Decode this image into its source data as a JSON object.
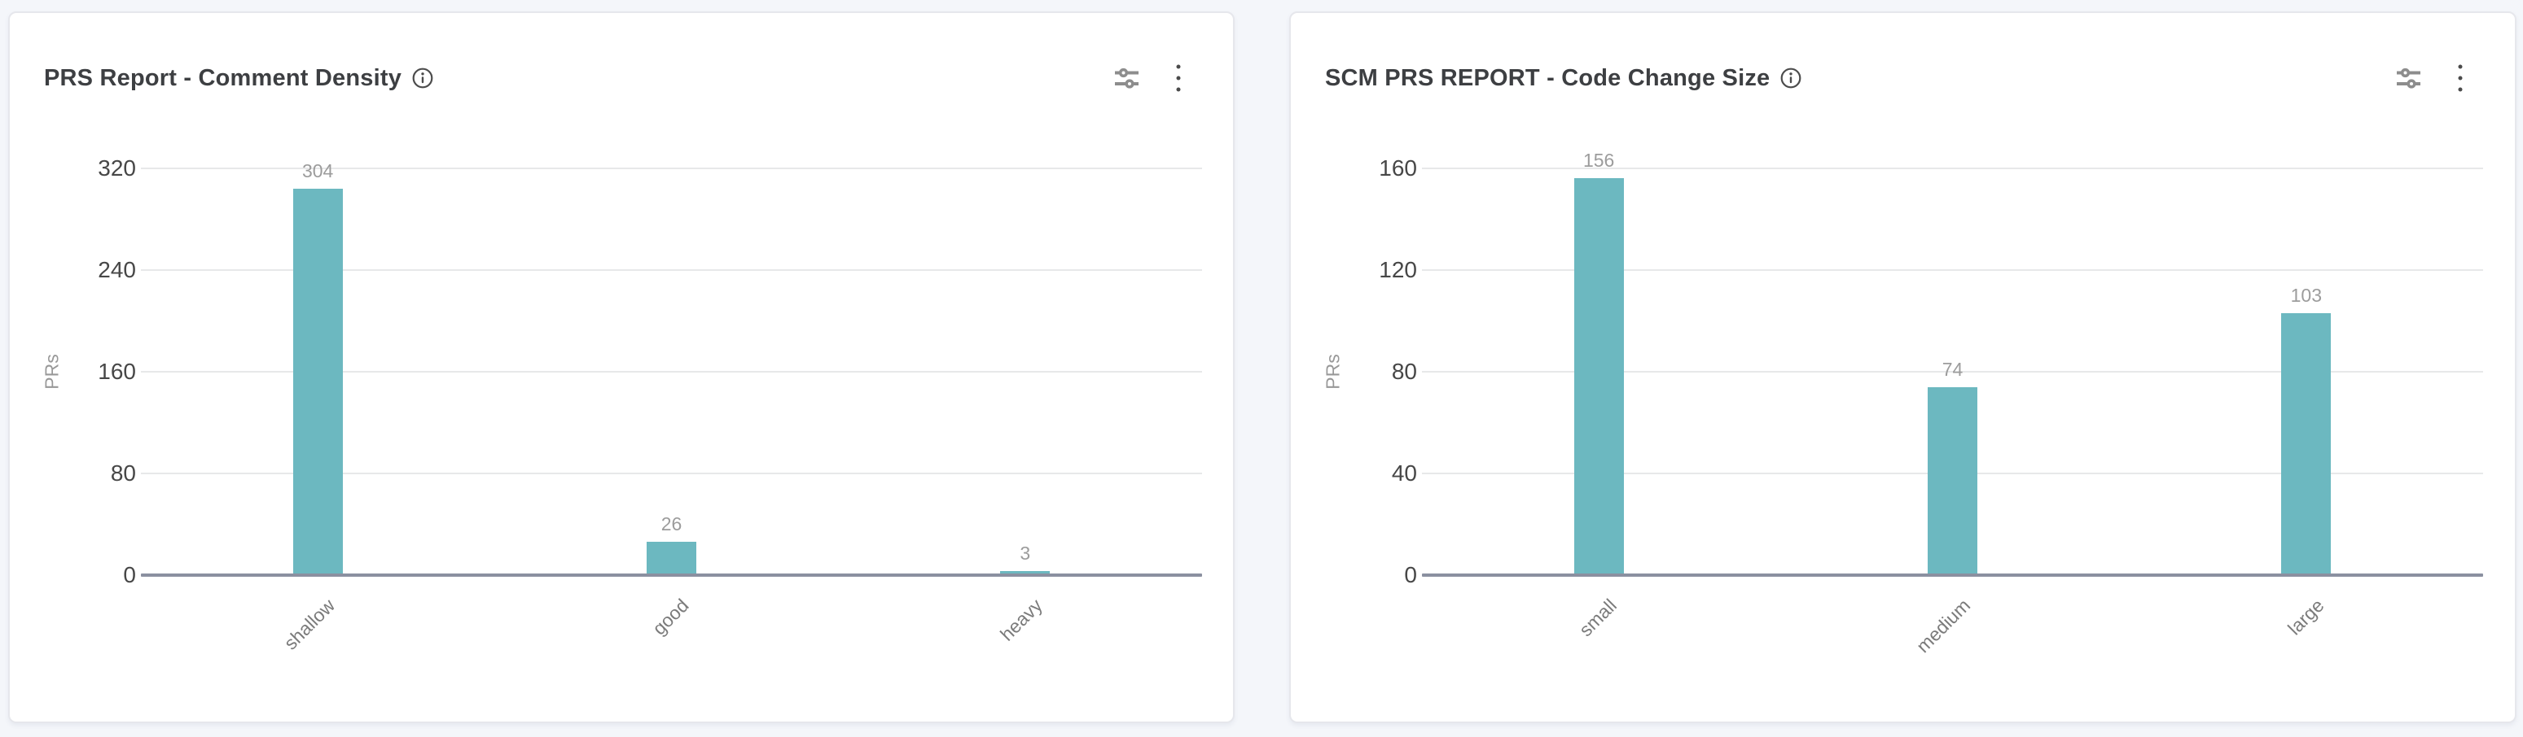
{
  "page": {
    "background_color": "#f4f6fa",
    "card_background": "#ffffff"
  },
  "colors": {
    "bar": "#6cb8c0",
    "axis_line": "#8b90a0",
    "gridline": "#e7e8e9",
    "title_text": "#3d3f42",
    "tick_text": "#474747",
    "value_label_text": "#9c9c9c",
    "category_text": "#7b7b7b"
  },
  "icons": {
    "info": "info-icon (circled i)",
    "filter": "sliders-filter-icon",
    "menu": "kebab-vertical-dots-icon"
  },
  "chart_data": [
    {
      "type": "bar",
      "title": "PRS Report - Comment Density",
      "categories": [
        "shallow",
        "good",
        "heavy"
      ],
      "values": [
        304,
        26,
        3
      ],
      "xlabel": "",
      "ylabel": "PRs",
      "yticks": [
        0,
        80,
        160,
        240,
        320
      ],
      "ylim": [
        0,
        320
      ],
      "grid": true,
      "legend": false,
      "bar_color": "#6cb8c0",
      "value_labels_shown": true,
      "category_label_rotation_deg": 45
    },
    {
      "type": "bar",
      "title": "SCM PRS REPORT - Code Change Size",
      "categories": [
        "small",
        "medium",
        "large"
      ],
      "values": [
        156,
        74,
        103
      ],
      "xlabel": "",
      "ylabel": "PRs",
      "yticks": [
        0,
        40,
        80,
        120,
        160
      ],
      "ylim": [
        0,
        160
      ],
      "grid": true,
      "legend": false,
      "bar_color": "#6cb8c0",
      "value_labels_shown": true,
      "category_label_rotation_deg": 45
    }
  ]
}
